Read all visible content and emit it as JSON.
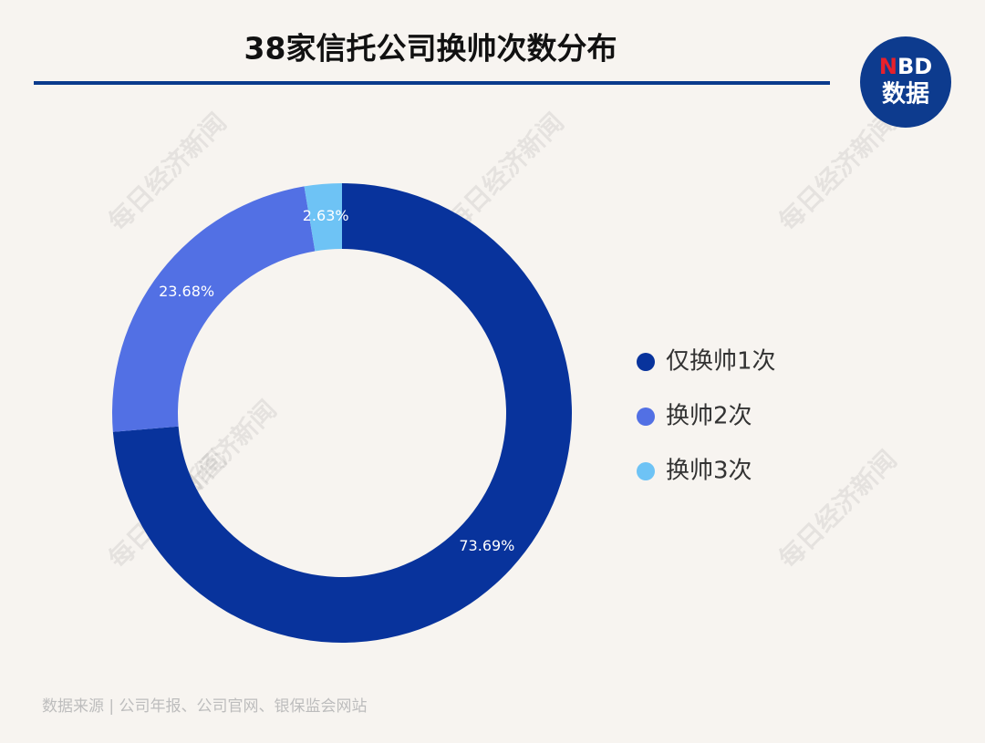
{
  "chart_data": {
    "type": "pie",
    "title": "38家信托公司换帅次数分布",
    "categories": [
      "仅换帅1次",
      "换帅2次",
      "换帅3次"
    ],
    "values": [
      73.69,
      23.68,
      2.63
    ],
    "value_labels": [
      "73.69%",
      "23.68%",
      "2.63%"
    ],
    "colors": [
      "#08339c",
      "#5270e4",
      "#6ec3f5"
    ],
    "donut": true,
    "legend": "right",
    "source": "数据来源 | 公司年报、公司官网、银保监会网站",
    "logo": {
      "text": "NBD",
      "subtext": "数据"
    },
    "watermark": "每日经济新闻"
  }
}
